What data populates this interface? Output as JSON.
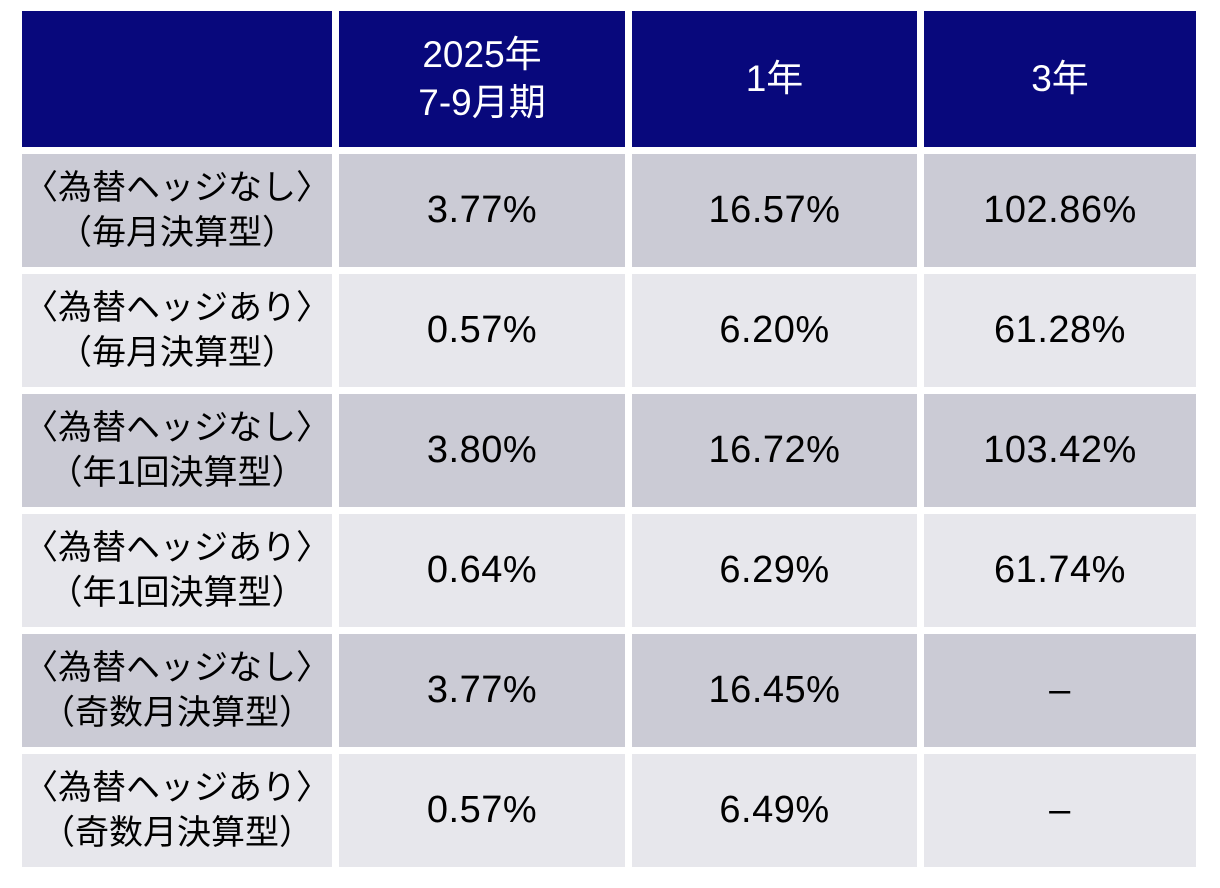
{
  "colors": {
    "header_bg": "#08087C",
    "header_text": "#FFFFFF",
    "row_dark_bg": "#CBCBD5",
    "row_light_bg": "#E7E7EC",
    "body_text": "#000000",
    "gutter": "#FFFFFF"
  },
  "chart_data": {
    "type": "table",
    "columns": [
      "",
      "2025年\n7-9月期",
      "1年",
      "3年"
    ],
    "rows": [
      {
        "label": "〈為替ヘッジなし〉\n（毎月決算型）",
        "values": [
          "3.77%",
          "16.57%",
          "102.86%"
        ]
      },
      {
        "label": "〈為替ヘッジあり〉\n（毎月決算型）",
        "values": [
          "0.57%",
          "6.20%",
          "61.28%"
        ]
      },
      {
        "label": "〈為替ヘッジなし〉\n（年1回決算型）",
        "values": [
          "3.80%",
          "16.72%",
          "103.42%"
        ]
      },
      {
        "label": "〈為替ヘッジあり〉\n（年1回決算型）",
        "values": [
          "0.64%",
          "6.29%",
          "61.74%"
        ]
      },
      {
        "label": "〈為替ヘッジなし〉\n（奇数月決算型）",
        "values": [
          "3.77%",
          "16.45%",
          "–"
        ]
      },
      {
        "label": "〈為替ヘッジあり〉\n（奇数月決算型）",
        "values": [
          "0.57%",
          "6.49%",
          "–"
        ]
      }
    ]
  }
}
